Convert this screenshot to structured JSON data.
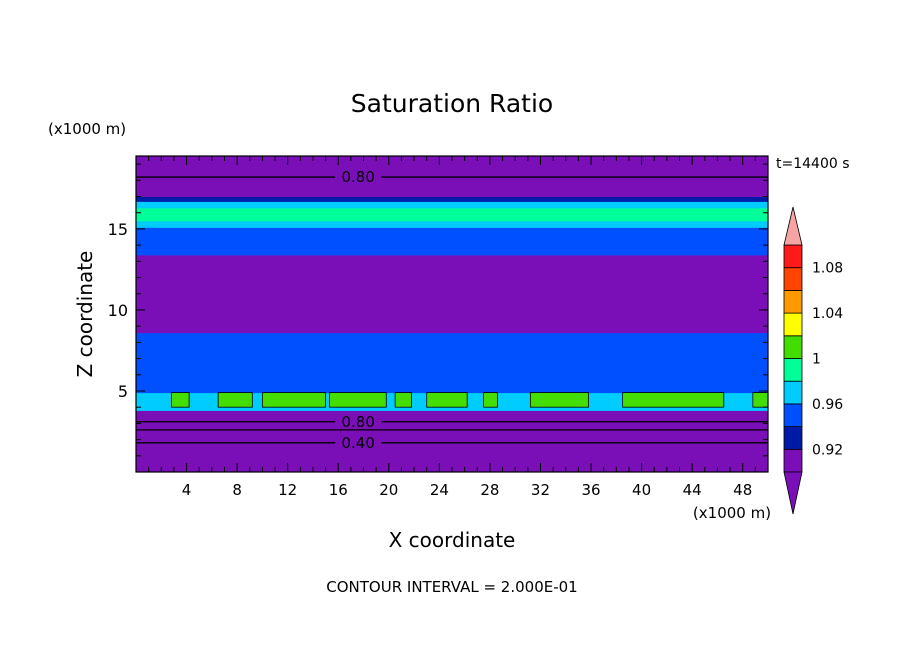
{
  "chart_data": {
    "type": "heatmap",
    "title": "Saturation Ratio",
    "xlabel": "X coordinate",
    "ylabel": "Z coordinate",
    "x_unit": "(x1000 m)",
    "y_unit": "(x1000 m)",
    "time_label": "t=14400 s",
    "footer": "CONTOUR INTERVAL = 2.000E-01",
    "xlim": [
      0,
      50
    ],
    "ylim": [
      0,
      19.5
    ],
    "x_ticks": [
      4,
      8,
      12,
      16,
      20,
      24,
      28,
      32,
      36,
      40,
      44,
      48
    ],
    "y_ticks": [
      5,
      10,
      15
    ],
    "colorbar": {
      "labels": [
        "1.08",
        "1.04",
        "1",
        "0.96",
        "0.92"
      ],
      "bin_edges": [
        0.9,
        0.92,
        0.94,
        0.96,
        0.98,
        1.0,
        1.02,
        1.04,
        1.06,
        1.08,
        1.1
      ],
      "colors": [
        "#7a0fb8",
        "#001aa8",
        "#0050ff",
        "#00ccff",
        "#00ff99",
        "#44dd00",
        "#ffff00",
        "#ff9900",
        "#ff4400",
        "#ff1a1a"
      ],
      "over_color": "#f5a3a3",
      "under_color": "#7a0fb8"
    },
    "bands": [
      {
        "z0": 0.0,
        "z1": 3.4,
        "value": "<0.90"
      },
      {
        "z0": 3.4,
        "z1": 3.8,
        "value": "0.90-0.92"
      },
      {
        "z0": 3.8,
        "z1": 4.9,
        "value": "0.96-0.98"
      },
      {
        "z0": 4.9,
        "z1": 6.3,
        "value": "0.94-0.96"
      },
      {
        "z0": 6.3,
        "z1": 8.6,
        "value": "0.94-0.96"
      },
      {
        "z0": 8.6,
        "z1": 13.4,
        "value": "0.90-0.92"
      },
      {
        "z0": 13.4,
        "z1": 15.1,
        "value": "0.94-0.96"
      },
      {
        "z0": 15.1,
        "z1": 15.5,
        "value": "0.96-0.98"
      },
      {
        "z0": 15.5,
        "z1": 16.3,
        "value": "0.98-1.00"
      },
      {
        "z0": 16.3,
        "z1": 16.7,
        "value": "0.96-0.98"
      },
      {
        "z0": 16.7,
        "z1": 17.0,
        "value": "0.92-0.94"
      },
      {
        "z0": 17.0,
        "z1": 19.5,
        "value": "<0.90"
      }
    ],
    "green_patches": [
      {
        "x0": 2.8,
        "x1": 4.2
      },
      {
        "x0": 6.5,
        "x1": 9.2
      },
      {
        "x0": 10.0,
        "x1": 15.0
      },
      {
        "x0": 15.3,
        "x1": 19.8
      },
      {
        "x0": 20.5,
        "x1": 21.8
      },
      {
        "x0": 23.0,
        "x1": 26.2
      },
      {
        "x0": 27.5,
        "x1": 28.6
      },
      {
        "x0": 31.2,
        "x1": 35.8
      },
      {
        "x0": 38.5,
        "x1": 46.5
      },
      {
        "x0": 48.8,
        "x1": 50.0
      }
    ],
    "contour_lines": [
      {
        "value": "0.80",
        "z": 18.2,
        "labeled": true,
        "label_x": 17.5
      },
      {
        "value": "0.80",
        "z": 3.1,
        "labeled": true,
        "label_x": 17.5
      },
      {
        "value": "",
        "z": 2.6,
        "labeled": false
      },
      {
        "value": "0.40",
        "z": 1.8,
        "labeled": true,
        "label_x": 17.5
      }
    ]
  }
}
